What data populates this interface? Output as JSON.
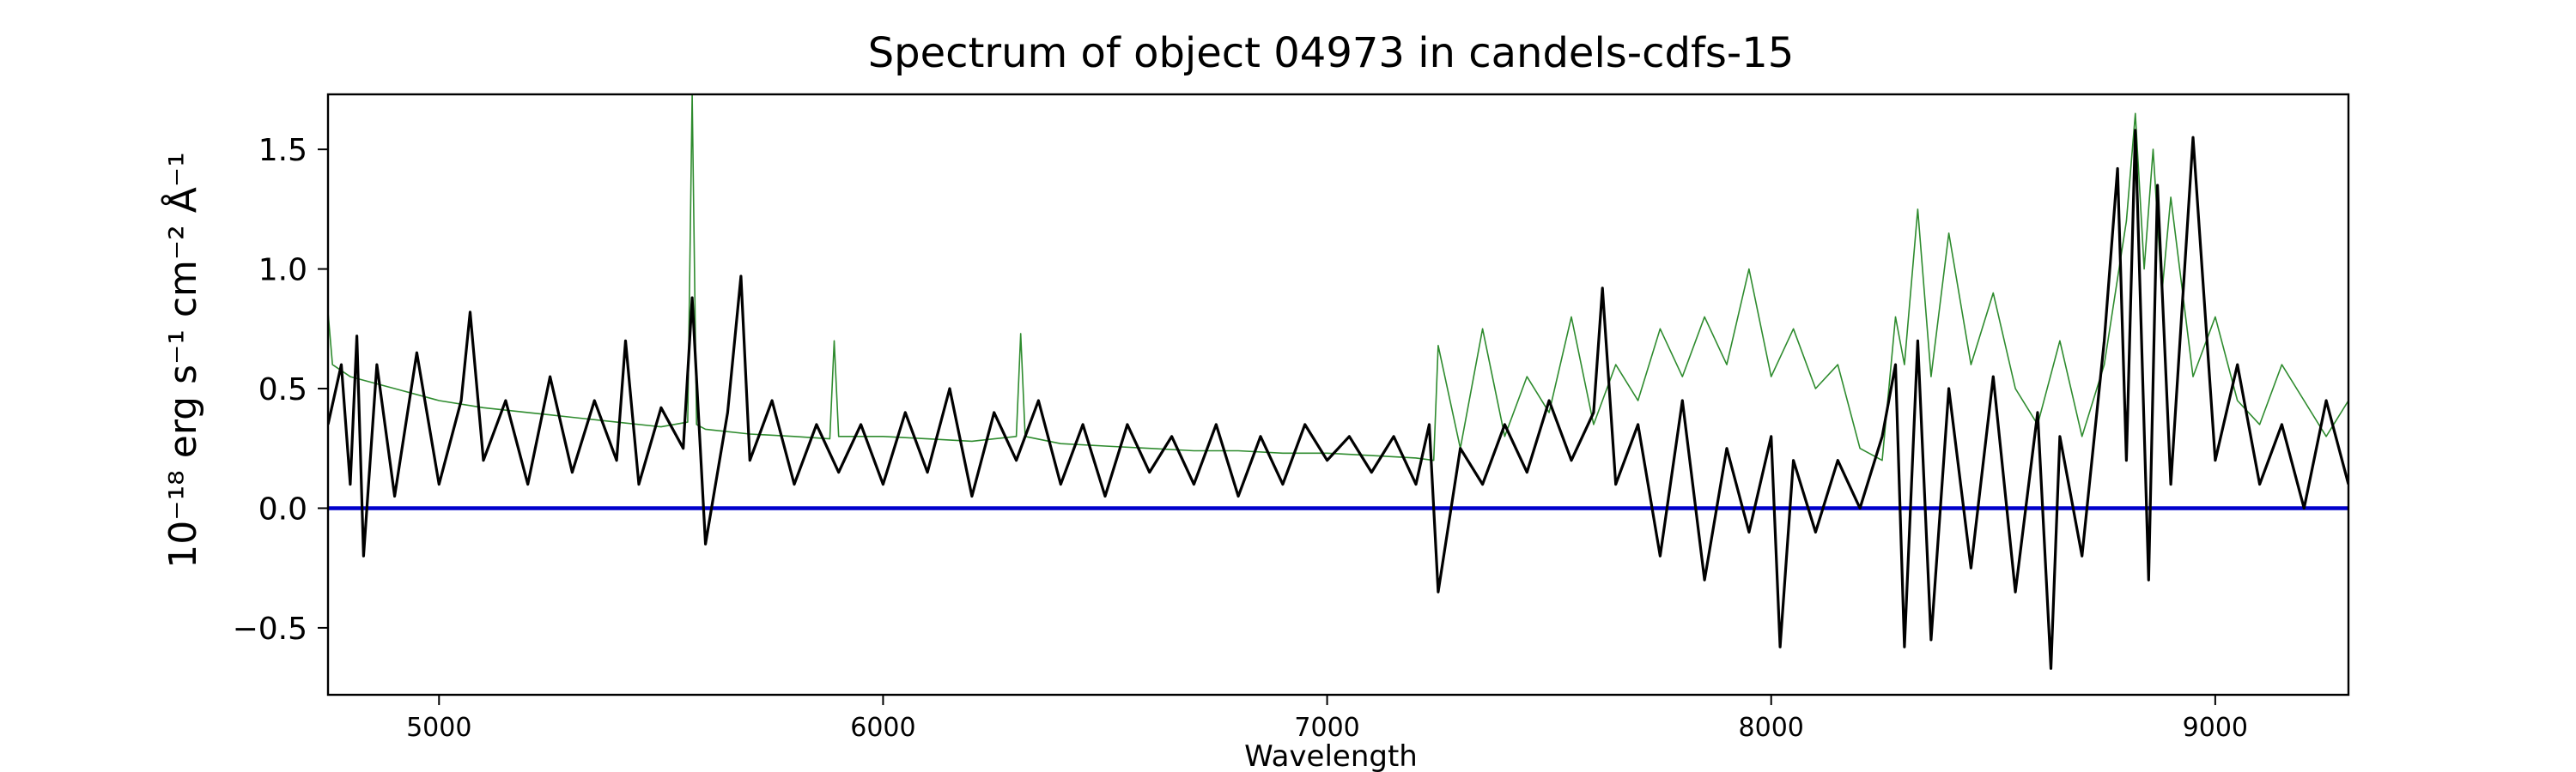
{
  "chart_data": {
    "type": "line",
    "title": "Spectrum of object 04973 in candels-cdfs-15",
    "xlabel": "Wavelength",
    "ylabel": "10⁻¹⁸ erg s⁻¹ cm⁻² Å⁻¹",
    "xlim": [
      4750,
      9300
    ],
    "ylim": [
      -0.78,
      1.73
    ],
    "x_ticks": [
      5000,
      6000,
      7000,
      8000,
      9000
    ],
    "x_tick_labels": [
      "5000",
      "6000",
      "7000",
      "8000",
      "9000"
    ],
    "y_ticks": [
      -0.5,
      0.0,
      0.5,
      1.0,
      1.5
    ],
    "y_tick_labels": [
      "−0.5",
      "0.0",
      "0.5",
      "1.0",
      "1.5"
    ],
    "grid": false,
    "legend": "none",
    "colors": {
      "flux": "#000000",
      "error": "#2e8b2e",
      "zero": "#0000cc",
      "axes": "#000000"
    },
    "series": [
      {
        "role": "flux",
        "style": "thick black line",
        "x": [
          4750,
          4780,
          4800,
          4815,
          4830,
          4860,
          4900,
          4950,
          5000,
          5050,
          5070,
          5100,
          5150,
          5200,
          5250,
          5300,
          5350,
          5400,
          5420,
          5450,
          5500,
          5550,
          5570,
          5600,
          5650,
          5680,
          5700,
          5750,
          5800,
          5850,
          5900,
          5950,
          6000,
          6050,
          6100,
          6150,
          6200,
          6250,
          6300,
          6350,
          6400,
          6450,
          6500,
          6550,
          6600,
          6650,
          6700,
          6750,
          6800,
          6850,
          6900,
          6950,
          7000,
          7050,
          7100,
          7150,
          7200,
          7230,
          7250,
          7300,
          7350,
          7400,
          7450,
          7500,
          7550,
          7600,
          7620,
          7650,
          7700,
          7750,
          7800,
          7850,
          7900,
          7950,
          8000,
          8020,
          8050,
          8100,
          8150,
          8200,
          8250,
          8280,
          8300,
          8330,
          8360,
          8400,
          8450,
          8500,
          8550,
          8600,
          8630,
          8650,
          8700,
          8750,
          8780,
          8800,
          8820,
          8850,
          8870,
          8900,
          8950,
          9000,
          9050,
          9100,
          9150,
          9200,
          9250,
          9300
        ],
        "y": [
          0.35,
          0.6,
          0.1,
          0.72,
          -0.2,
          0.6,
          0.05,
          0.65,
          0.1,
          0.45,
          0.82,
          0.2,
          0.45,
          0.1,
          0.55,
          0.15,
          0.45,
          0.2,
          0.7,
          0.1,
          0.42,
          0.25,
          0.88,
          -0.15,
          0.4,
          0.97,
          0.2,
          0.45,
          0.1,
          0.35,
          0.15,
          0.35,
          0.1,
          0.4,
          0.15,
          0.5,
          0.05,
          0.4,
          0.2,
          0.45,
          0.1,
          0.35,
          0.05,
          0.35,
          0.15,
          0.3,
          0.1,
          0.35,
          0.05,
          0.3,
          0.1,
          0.35,
          0.2,
          0.3,
          0.15,
          0.3,
          0.1,
          0.35,
          -0.35,
          0.25,
          0.1,
          0.35,
          0.15,
          0.45,
          0.2,
          0.4,
          0.92,
          0.1,
          0.35,
          -0.2,
          0.45,
          -0.3,
          0.25,
          -0.1,
          0.3,
          -0.58,
          0.2,
          -0.1,
          0.2,
          0.0,
          0.3,
          0.6,
          -0.58,
          0.7,
          -0.55,
          0.5,
          -0.25,
          0.55,
          -0.35,
          0.4,
          -0.67,
          0.3,
          -0.2,
          0.7,
          1.42,
          0.2,
          1.58,
          -0.3,
          1.35,
          0.1,
          1.55,
          0.2,
          0.6,
          0.1,
          0.35,
          0.0,
          0.45,
          0.1
        ]
      },
      {
        "role": "error",
        "style": "thin green line",
        "x": [
          4750,
          4760,
          4800,
          4900,
          5000,
          5100,
          5200,
          5300,
          5400,
          5500,
          5560,
          5570,
          5580,
          5600,
          5700,
          5800,
          5880,
          5890,
          5900,
          6000,
          6100,
          6200,
          6300,
          6310,
          6320,
          6400,
          6500,
          6600,
          6700,
          6800,
          6900,
          7000,
          7100,
          7200,
          7240,
          7250,
          7300,
          7350,
          7400,
          7450,
          7500,
          7550,
          7600,
          7650,
          7700,
          7750,
          7800,
          7850,
          7900,
          7950,
          8000,
          8050,
          8100,
          8150,
          8200,
          8250,
          8280,
          8300,
          8330,
          8360,
          8400,
          8450,
          8500,
          8550,
          8600,
          8650,
          8700,
          8750,
          8800,
          8820,
          8840,
          8860,
          8880,
          8900,
          8950,
          9000,
          9050,
          9100,
          9150,
          9200,
          9250,
          9300
        ],
        "y": [
          0.82,
          0.6,
          0.55,
          0.5,
          0.45,
          0.42,
          0.4,
          0.38,
          0.36,
          0.34,
          0.36,
          1.73,
          0.35,
          0.33,
          0.31,
          0.3,
          0.29,
          0.7,
          0.3,
          0.3,
          0.29,
          0.28,
          0.3,
          0.73,
          0.3,
          0.27,
          0.26,
          0.25,
          0.24,
          0.24,
          0.23,
          0.23,
          0.22,
          0.21,
          0.2,
          0.68,
          0.25,
          0.75,
          0.3,
          0.55,
          0.4,
          0.8,
          0.35,
          0.6,
          0.45,
          0.75,
          0.55,
          0.8,
          0.6,
          1.0,
          0.55,
          0.75,
          0.5,
          0.6,
          0.25,
          0.2,
          0.8,
          0.6,
          1.25,
          0.55,
          1.15,
          0.6,
          0.9,
          0.5,
          0.35,
          0.7,
          0.3,
          0.6,
          1.2,
          1.65,
          1.0,
          1.5,
          0.9,
          1.3,
          0.55,
          0.8,
          0.45,
          0.35,
          0.6,
          0.45,
          0.3,
          0.45
        ]
      },
      {
        "role": "zero",
        "style": "thick blue horizontal line",
        "x": [
          4750,
          9300
        ],
        "y": [
          0.0,
          0.0
        ]
      }
    ]
  }
}
